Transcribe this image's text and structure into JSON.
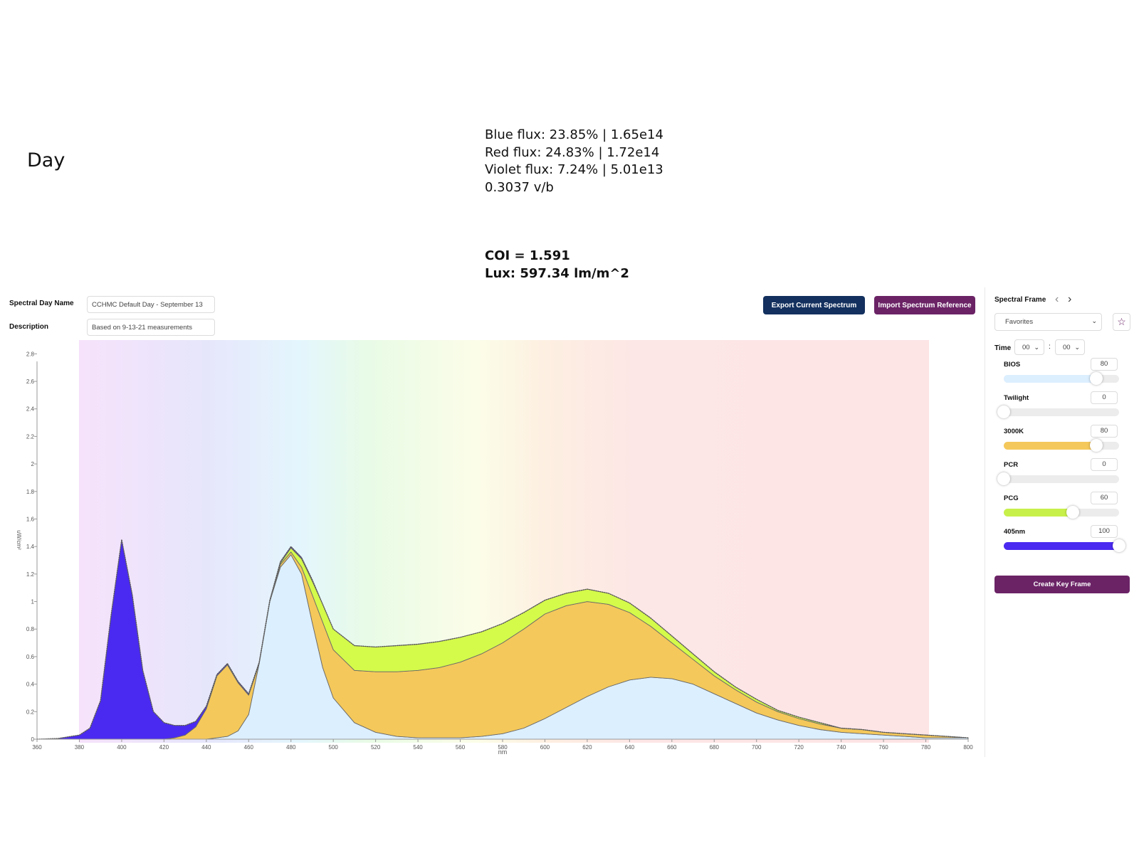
{
  "slide": {
    "title": "Day",
    "stats": [
      "Blue flux: 23.85% | 1.65e14",
      "Red flux: 24.83% | 1.72e14",
      "Violet flux: 7.24% | 5.01e13",
      "0.3037 v/b"
    ],
    "bold_stats": [
      "COI = 1.591",
      "Lux: 597.34 lm/m^2"
    ]
  },
  "form": {
    "name_label": "Spectral Day Name",
    "name_value": "CCHMC Default Day - September 13",
    "description_label": "Description",
    "description_value": "Based on 9-13-21 measurements"
  },
  "toolbar": {
    "export_label": "Export Current Spectrum",
    "import_label": "Import Spectrum Reference",
    "export_color": "#13305e",
    "import_color": "#6b2366"
  },
  "panel": {
    "title": "Spectral Frame",
    "prev_icon": "chevron-left-icon",
    "next_icon": "chevron-right-icon",
    "favorites_value": "Favorites",
    "star_icon": "star-icon",
    "time_label": "Time",
    "hour_value": "00",
    "minute_value": "00",
    "colon": ":",
    "sliders": [
      {
        "label": "BIOS",
        "value": "80",
        "fraction": 0.8,
        "color": "#dcefff"
      },
      {
        "label": "Twilight",
        "value": "0",
        "fraction": 0.0,
        "color": "#dcefff"
      },
      {
        "label": "3000K",
        "value": "80",
        "fraction": 0.8,
        "color": "#f4c85a"
      },
      {
        "label": "PCR",
        "value": "0",
        "fraction": 0.0,
        "color": "#e0e0e0"
      },
      {
        "label": "PCG",
        "value": "60",
        "fraction": 0.6,
        "color": "#c8f04a"
      },
      {
        "label": "405nm",
        "value": "100",
        "fraction": 1.0,
        "color": "#4a2af0"
      }
    ],
    "create_label": "Create Key Frame"
  },
  "chart_data": {
    "type": "area",
    "xlabel": "nm",
    "ylabel": "uW/cm²",
    "xlim": [
      360,
      800
    ],
    "ylim": [
      0,
      2.9
    ],
    "x_ticks": [
      360,
      380,
      400,
      420,
      440,
      460,
      480,
      500,
      520,
      540,
      560,
      580,
      600,
      620,
      640,
      660,
      680,
      700,
      720,
      740,
      760,
      780,
      800
    ],
    "y_ticks": [
      0,
      0.2,
      0.4,
      0.6,
      0.8,
      1,
      1.2,
      1.4,
      1.6,
      1.8,
      2,
      2.2,
      2.4,
      2.6,
      2.8
    ],
    "stacked": true,
    "x": [
      360,
      370,
      380,
      385,
      390,
      395,
      400,
      405,
      410,
      415,
      420,
      425,
      430,
      435,
      440,
      445,
      450,
      455,
      460,
      465,
      470,
      475,
      480,
      485,
      490,
      495,
      500,
      510,
      520,
      530,
      540,
      550,
      560,
      570,
      580,
      590,
      600,
      610,
      620,
      630,
      640,
      650,
      660,
      670,
      680,
      690,
      700,
      710,
      720,
      730,
      740,
      750,
      760,
      770,
      780,
      790,
      800
    ],
    "series": [
      {
        "color": "#dcefff",
        "values": [
          0,
          0,
          0,
          0,
          0,
          0,
          0,
          0,
          0,
          0,
          0,
          0,
          0,
          0,
          0,
          0.01,
          0.02,
          0.06,
          0.18,
          0.55,
          1.0,
          1.25,
          1.34,
          1.2,
          0.85,
          0.52,
          0.3,
          0.12,
          0.05,
          0.02,
          0.01,
          0.01,
          0.01,
          0.02,
          0.04,
          0.08,
          0.15,
          0.23,
          0.31,
          0.38,
          0.43,
          0.45,
          0.44,
          0.4,
          0.33,
          0.26,
          0.19,
          0.14,
          0.1,
          0.07,
          0.05,
          0.04,
          0.03,
          0.02,
          0.01,
          0.01,
          0.01
        ]
      },
      {
        "color": "#f4c85a",
        "values": [
          0,
          0,
          0,
          0,
          0,
          0,
          0,
          0,
          0,
          0,
          0,
          0.01,
          0.03,
          0.09,
          0.22,
          0.45,
          0.52,
          0.35,
          0.14,
          0.0,
          0.0,
          0.02,
          0.02,
          0.05,
          0.2,
          0.33,
          0.35,
          0.38,
          0.44,
          0.47,
          0.49,
          0.51,
          0.55,
          0.6,
          0.66,
          0.72,
          0.76,
          0.74,
          0.69,
          0.6,
          0.49,
          0.37,
          0.26,
          0.18,
          0.13,
          0.1,
          0.08,
          0.06,
          0.05,
          0.04,
          0.03,
          0.03,
          0.02,
          0.02,
          0.02,
          0.01,
          0.0
        ]
      },
      {
        "color": "#d4fa4a",
        "values": [
          0,
          0,
          0,
          0,
          0,
          0,
          0,
          0,
          0,
          0,
          0,
          0,
          0,
          0,
          0,
          0,
          0,
          0,
          0,
          0,
          0,
          0.01,
          0.03,
          0.06,
          0.1,
          0.13,
          0.15,
          0.18,
          0.18,
          0.19,
          0.19,
          0.19,
          0.18,
          0.16,
          0.14,
          0.12,
          0.1,
          0.09,
          0.09,
          0.08,
          0.07,
          0.06,
          0.05,
          0.04,
          0.03,
          0.02,
          0.02,
          0.01,
          0.01,
          0.01,
          0.0,
          0.0,
          0.0,
          0.0,
          0.0,
          0.0,
          0.0
        ]
      },
      {
        "color": "#4a2af0",
        "values": [
          0,
          0.005,
          0.03,
          0.08,
          0.28,
          0.9,
          1.45,
          1.05,
          0.5,
          0.2,
          0.12,
          0.09,
          0.07,
          0.04,
          0.02,
          0.01,
          0.01,
          0.01,
          0.01,
          0.01,
          0.01,
          0.01,
          0.01,
          0.01,
          0.01,
          0.0,
          0.0,
          0.0,
          0.0,
          0.0,
          0.0,
          0.0,
          0.0,
          0.0,
          0.0,
          0.0,
          0.0,
          0.0,
          0.0,
          0.0,
          0.0,
          0.0,
          0.0,
          0.0,
          0.0,
          0.0,
          0.0,
          0.0,
          0.0,
          0.0,
          0.0,
          0.0,
          0.0,
          0.0,
          0.0,
          0.0,
          0.0
        ]
      }
    ]
  }
}
